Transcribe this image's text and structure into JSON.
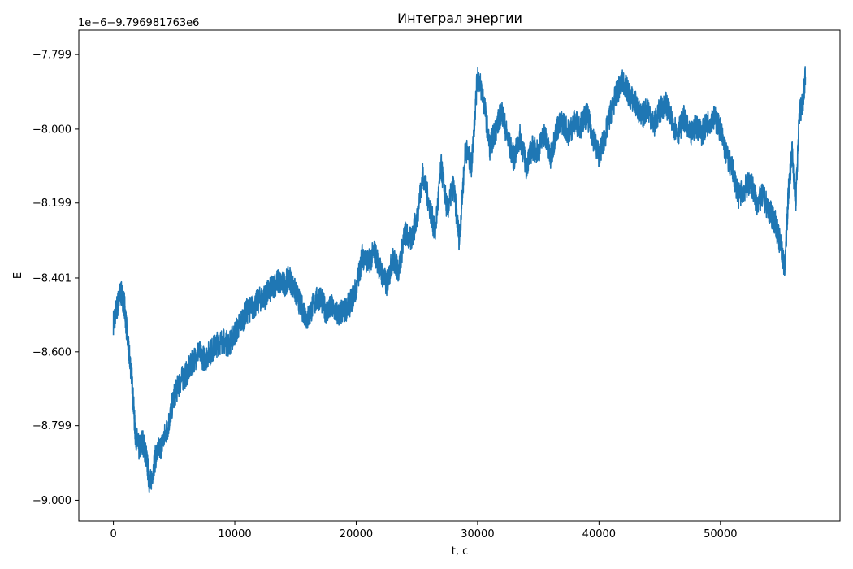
{
  "chart_data": {
    "type": "line",
    "title": "Интеграл энергии",
    "xlabel": "t, c",
    "ylabel": "E",
    "offset_text": "1e−6−9.796981763e6",
    "xlim": [
      -2850,
      59850
    ],
    "ylim": [
      -9.056,
      -7.733
    ],
    "x_ticks": [
      0,
      10000,
      20000,
      30000,
      40000,
      50000
    ],
    "x_tick_labels": [
      "0",
      "10000",
      "20000",
      "30000",
      "40000",
      "50000"
    ],
    "y_ticks": [
      -9.0,
      -8.799,
      -8.6,
      -8.401,
      -8.199,
      -8.0,
      -7.799
    ],
    "y_tick_labels": [
      "−9.000",
      "−8.799",
      "−8.600",
      "−8.401",
      "−8.199",
      "−8.000",
      "−7.799"
    ],
    "grid": false,
    "line_color": "#1f77b4",
    "series": [
      {
        "x": [
          0,
          300,
          600,
          900,
          1200,
          1500,
          1800,
          2100,
          2400,
          2700,
          3000,
          3500,
          4000,
          4500,
          5000,
          5500,
          6000,
          6500,
          7000,
          7500,
          8000,
          8500,
          9000,
          9500,
          10000,
          10500,
          11000,
          11500,
          12000,
          12500,
          13000,
          13500,
          14000,
          14500,
          15000,
          15500,
          16000,
          16500,
          17000,
          17500,
          18000,
          18500,
          19000,
          19500,
          20000,
          20500,
          21000,
          21500,
          22000,
          22500,
          23000,
          23500,
          24000,
          24500,
          25000,
          25500,
          26000,
          26500,
          27000,
          27500,
          28000,
          28500,
          29000,
          29500,
          30000,
          30500,
          31000,
          31500,
          32000,
          32500,
          33000,
          33500,
          34000,
          34500,
          35000,
          35500,
          36000,
          36500,
          37000,
          37500,
          38000,
          38500,
          39000,
          39500,
          40000,
          40500,
          41000,
          41500,
          42000,
          42500,
          43000,
          43500,
          44000,
          44500,
          45000,
          45500,
          46000,
          46500,
          47000,
          47500,
          48000,
          48500,
          49000,
          49500,
          50000,
          50500,
          51000,
          51500,
          52000,
          52500,
          53000,
          53500,
          54000,
          54500,
          55000,
          55300,
          55600,
          55900,
          56200,
          56500,
          56800,
          57000
        ],
        "y": [
          -8.52,
          -8.48,
          -8.44,
          -8.47,
          -8.58,
          -8.66,
          -8.82,
          -8.86,
          -8.84,
          -8.88,
          -8.96,
          -8.88,
          -8.85,
          -8.8,
          -8.72,
          -8.68,
          -8.66,
          -8.63,
          -8.6,
          -8.62,
          -8.6,
          -8.58,
          -8.57,
          -8.58,
          -8.55,
          -8.52,
          -8.49,
          -8.48,
          -8.46,
          -8.45,
          -8.43,
          -8.41,
          -8.42,
          -8.4,
          -8.44,
          -8.48,
          -8.51,
          -8.47,
          -8.45,
          -8.49,
          -8.48,
          -8.5,
          -8.49,
          -8.47,
          -8.43,
          -8.34,
          -8.36,
          -8.33,
          -8.38,
          -8.42,
          -8.35,
          -8.38,
          -8.28,
          -8.3,
          -8.24,
          -8.12,
          -8.2,
          -8.28,
          -8.1,
          -8.22,
          -8.15,
          -8.3,
          -8.05,
          -8.1,
          -7.85,
          -7.92,
          -8.05,
          -8.0,
          -7.95,
          -8.03,
          -8.08,
          -8.02,
          -8.1,
          -8.05,
          -8.06,
          -8.01,
          -8.08,
          -8.0,
          -7.98,
          -8.01,
          -7.98,
          -7.99,
          -7.96,
          -8.02,
          -8.07,
          -8.02,
          -7.95,
          -7.9,
          -7.87,
          -7.91,
          -7.93,
          -7.97,
          -7.94,
          -7.99,
          -7.95,
          -7.93,
          -7.98,
          -8.01,
          -7.97,
          -8.02,
          -7.99,
          -8.01,
          -7.98,
          -7.97,
          -8.0,
          -8.07,
          -8.11,
          -8.18,
          -8.16,
          -8.14,
          -8.2,
          -8.18,
          -8.22,
          -8.25,
          -8.32,
          -8.38,
          -8.17,
          -8.06,
          -8.2,
          -7.96,
          -7.92,
          -7.86
        ]
      }
    ]
  }
}
